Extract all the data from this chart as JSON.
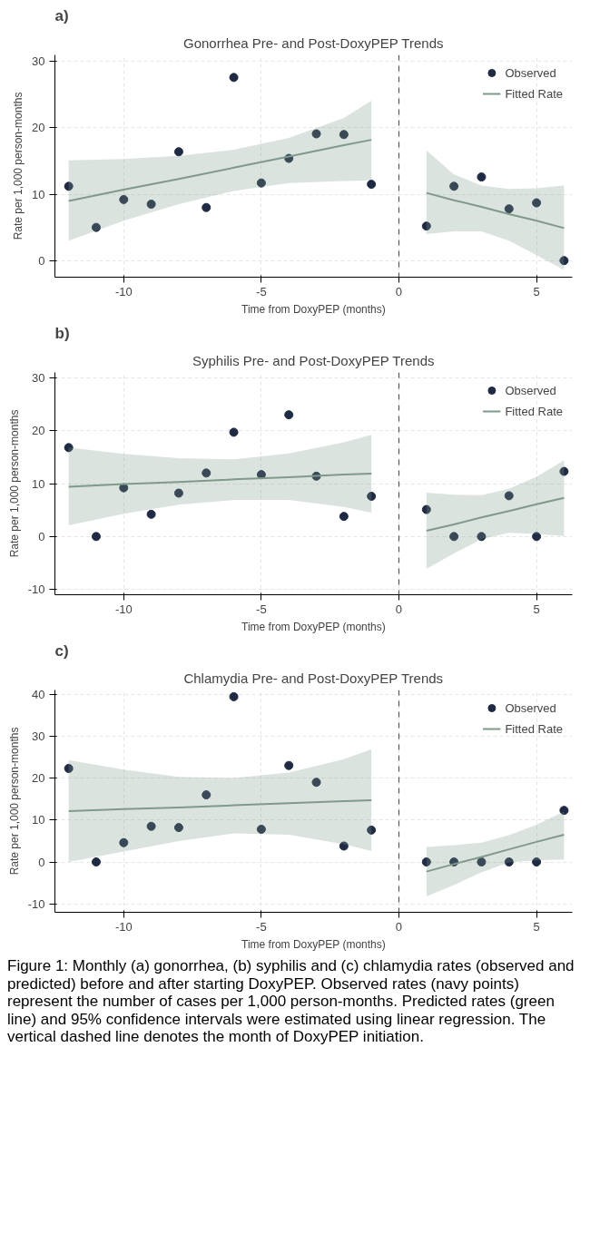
{
  "chart_data": [
    {
      "type": "scatter",
      "title": "Gonorrhea Pre- and Post-DoxyPEP Trends",
      "xlabel": "Time from DoxyPEP (months)",
      "ylabel": "Rate per 1,000 person-months",
      "annotations": [
        "a)"
      ],
      "xlim": [
        -12.5,
        6.3
      ],
      "xticks": [
        -10,
        -5,
        0,
        5
      ],
      "ylim": [
        -2.5,
        31
      ],
      "yticks": [
        0,
        10,
        20,
        30
      ],
      "grid": true,
      "legend": "top right",
      "ref_lines": [
        {
          "axis": "x",
          "value": 0,
          "label": null,
          "color": "#555555",
          "line_style": "dashed"
        }
      ],
      "series": [
        {
          "name": "Observed",
          "marker": "circle",
          "color": "#1f2a44",
          "x": [
            -12,
            -11,
            -10,
            -9,
            -8,
            -7,
            -6,
            -5,
            -4,
            -3,
            -2,
            -1,
            1,
            2,
            3,
            4,
            5,
            6
          ],
          "values": [
            11.2,
            5.0,
            9.2,
            8.5,
            16.4,
            8.0,
            27.6,
            11.7,
            15.4,
            19.1,
            19.0,
            11.5,
            5.2,
            11.2,
            12.6,
            7.8,
            8.7,
            0
          ]
        },
        {
          "name": "Fitted Rate",
          "type": "line",
          "color": "#7f9a8a",
          "x": [
            -12,
            -10,
            -8,
            -6,
            -4,
            -2,
            -1,
            0,
            1,
            2,
            3,
            4,
            5,
            6
          ],
          "values": [
            9.0,
            10.7,
            12.3,
            14.0,
            15.7,
            17.4,
            18.2,
            null,
            10.2,
            9.1,
            8.1,
            7.0,
            6.0,
            4.9
          ],
          "lower": [
            3.0,
            6.0,
            8.5,
            10.5,
            11.7,
            12.0,
            12.1,
            null,
            4.0,
            4.4,
            4.4,
            3.0,
            0.8,
            -1.4
          ],
          "upper": [
            15.1,
            15.3,
            15.8,
            16.7,
            18.5,
            21.5,
            24.1,
            null,
            16.6,
            13.0,
            11.3,
            10.8,
            10.9,
            11.3
          ]
        }
      ]
    },
    {
      "type": "scatter",
      "title": "Syphilis Pre- and Post-DoxyPEP Trends",
      "xlabel": "Time from DoxyPEP (months)",
      "ylabel": "Rate per 1,000 person-months",
      "annotations": [
        "b)"
      ],
      "xlim": [
        -12.5,
        6.3
      ],
      "xticks": [
        -10,
        -5,
        0,
        5
      ],
      "ylim": [
        -11,
        31
      ],
      "yticks": [
        -10,
        0,
        10,
        20,
        30
      ],
      "grid": true,
      "legend": "top right",
      "ref_lines": [
        {
          "axis": "x",
          "value": 0,
          "label": null,
          "color": "#555555",
          "line_style": "dashed"
        }
      ],
      "series": [
        {
          "name": "Observed",
          "marker": "circle",
          "color": "#1f2a44",
          "x": [
            -12,
            -11,
            -10,
            -9,
            -8,
            -7,
            -6,
            -5,
            -4,
            -3,
            -2,
            -1,
            1,
            2,
            3,
            4,
            5,
            6
          ],
          "values": [
            16.8,
            0,
            9.2,
            4.2,
            8.2,
            12.0,
            19.7,
            11.7,
            23.0,
            11.4,
            3.8,
            7.6,
            5.1,
            0,
            0,
            7.7,
            0,
            12.3
          ]
        },
        {
          "name": "Fitted Rate",
          "type": "line",
          "color": "#7f9a8a",
          "x": [
            -12,
            -10,
            -8,
            -6,
            -4,
            -2,
            -1,
            0,
            1,
            2,
            3,
            4,
            5,
            6
          ],
          "values": [
            9.4,
            9.9,
            10.3,
            10.8,
            11.2,
            11.7,
            11.9,
            null,
            1.1,
            2.3,
            3.6,
            4.8,
            6.1,
            7.3
          ],
          "lower": [
            2.1,
            4.3,
            6.0,
            6.9,
            6.9,
            5.6,
            4.5,
            null,
            -6.1,
            -3.2,
            -0.5,
            0.7,
            0.5,
            0.1
          ],
          "upper": [
            16.8,
            15.6,
            14.8,
            14.6,
            15.7,
            17.8,
            19.2,
            null,
            8.3,
            7.9,
            7.8,
            9.0,
            11.3,
            14.4
          ]
        }
      ]
    },
    {
      "type": "scatter",
      "title": "Chlamydia Pre- and Post-DoxyPEP Trends",
      "xlabel": "Time from DoxyPEP (months)",
      "ylabel": "Rate per 1,000 person-months",
      "annotations": [
        "c)",
        "Figure 1: Monthly (a) gonorrhea, (b) syphilis and (c) chlamydia rates (observed and predicted) before and after starting DoxyPEP. Observed rates (navy points) represent the number of cases per 1,000 person-months. Predicted rates (green line) and 95% confidence intervals were estimated using linear regression. The vertical dashed line denotes the month of DoxyPEP initiation."
      ],
      "xlim": [
        -12.5,
        6.3
      ],
      "xticks": [
        -10,
        -5,
        0,
        5
      ],
      "ylim": [
        -12,
        41
      ],
      "yticks": [
        -10,
        0,
        10,
        20,
        30,
        40
      ],
      "grid": true,
      "legend": "top right",
      "ref_lines": [
        {
          "axis": "x",
          "value": 0,
          "label": null,
          "color": "#555555",
          "line_style": "dashed"
        }
      ],
      "series": [
        {
          "name": "Observed",
          "marker": "circle",
          "color": "#1f2a44",
          "x": [
            -12,
            -11,
            -10,
            -9,
            -8,
            -7,
            -6,
            -5,
            -4,
            -3,
            -2,
            -1,
            1,
            2,
            3,
            4,
            5,
            6
          ],
          "values": [
            22.3,
            0,
            4.6,
            8.5,
            8.2,
            16.0,
            39.4,
            7.8,
            23.0,
            19.0,
            3.8,
            7.6,
            0,
            0,
            0,
            0,
            0,
            12.3
          ]
        },
        {
          "name": "Fitted Rate",
          "type": "line",
          "color": "#7f9a8a",
          "x": [
            -12,
            -10,
            -8,
            -6,
            -4,
            -2,
            -1,
            0,
            1,
            2,
            3,
            4,
            5,
            6
          ],
          "values": [
            12.1,
            12.6,
            13.0,
            13.5,
            14.0,
            14.5,
            14.7,
            null,
            -2.3,
            -0.5,
            1.2,
            3.0,
            4.8,
            6.5
          ],
          "lower": [
            0.0,
            2.5,
            5.0,
            6.8,
            6.5,
            4.2,
            2.6,
            null,
            -8.2,
            -5.5,
            -2.5,
            -0.1,
            0.4,
            0.6
          ],
          "upper": [
            24.3,
            22.0,
            20.3,
            20.0,
            21.3,
            24.5,
            26.9,
            null,
            3.6,
            4.0,
            4.6,
            6.4,
            8.9,
            12.0
          ]
        }
      ]
    }
  ]
}
